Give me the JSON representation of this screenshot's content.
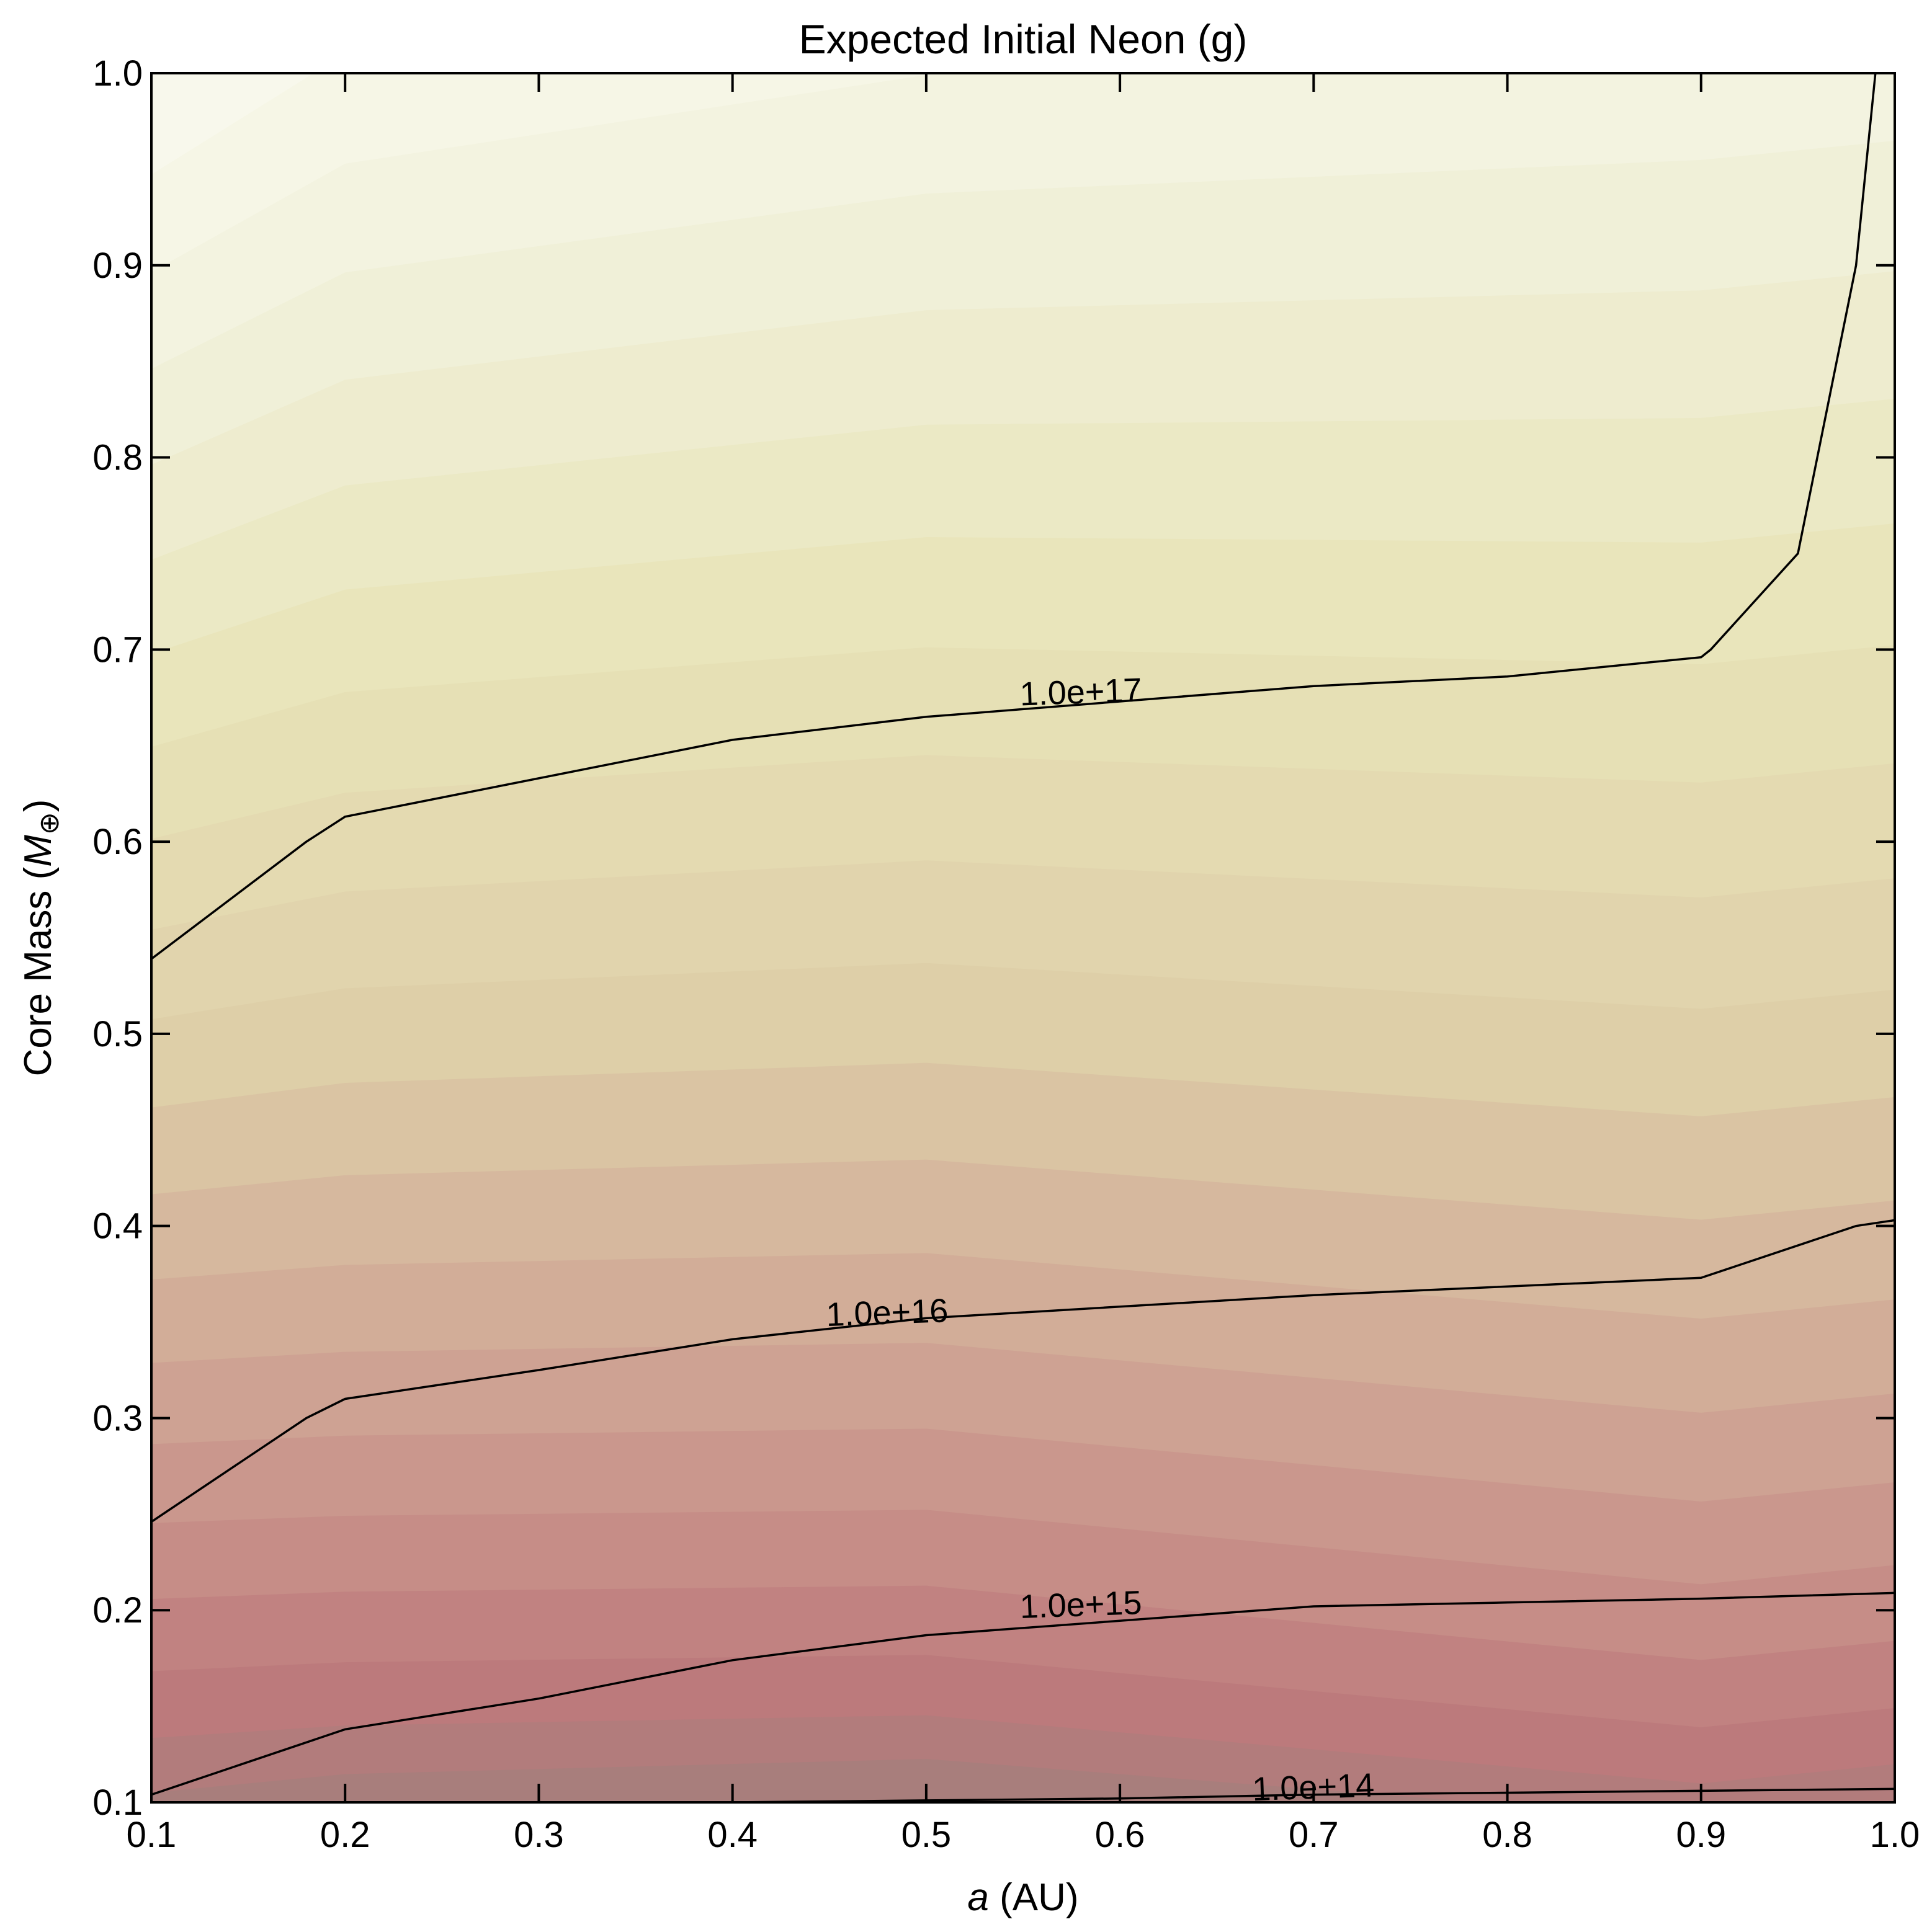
{
  "chart_data": {
    "type": "contour",
    "title": "Expected Initial Neon (g)",
    "xlabel_italic": "a",
    "xlabel_rest": " (AU)",
    "ylabel_main": "Core Mass (",
    "ylabel_symbol": "M",
    "ylabel_sub": "⊕",
    "ylabel_close": ")",
    "xlim": [
      0.1,
      1.0
    ],
    "ylim": [
      0.1,
      1.0
    ],
    "xticks": [
      0.1,
      0.2,
      0.3,
      0.4,
      0.5,
      0.6,
      0.7,
      0.8,
      0.9,
      1.0
    ],
    "xtick_labels": [
      "0.1",
      "0.2",
      "0.3",
      "0.4",
      "0.5",
      "0.6",
      "0.7",
      "0.8",
      "0.9",
      "1.0"
    ],
    "yticks": [
      0.1,
      0.2,
      0.3,
      0.4,
      0.5,
      0.6,
      0.7,
      0.8,
      0.9,
      1.0
    ],
    "ytick_labels": [
      "0.1",
      "0.2",
      "0.3",
      "0.4",
      "0.5",
      "0.6",
      "0.7",
      "0.8",
      "0.9",
      "1.0"
    ],
    "colormap": {
      "low": "#a87e7c",
      "mid_low": "#cc9a92",
      "mid": "#ddd0a8",
      "mid_high": "#e8e4b8",
      "high": "#fdfdf8"
    },
    "contours": [
      {
        "label": "1.0e+17",
        "label_at": [
          0.58,
          0.672
        ],
        "points": [
          [
            0.1,
            0.539
          ],
          [
            0.18,
            0.6
          ],
          [
            0.2,
            0.613
          ],
          [
            0.3,
            0.633
          ],
          [
            0.4,
            0.653
          ],
          [
            0.5,
            0.665
          ],
          [
            0.7,
            0.681
          ],
          [
            0.8,
            0.686
          ],
          [
            0.9,
            0.696
          ],
          [
            0.905,
            0.7
          ],
          [
            0.95,
            0.75
          ],
          [
            0.96,
            0.8
          ],
          [
            0.98,
            0.9
          ],
          [
            0.985,
            0.95
          ],
          [
            0.99,
            1.0
          ]
        ]
      },
      {
        "label": "1.0e+16",
        "label_at": [
          0.48,
          0.349
        ],
        "points": [
          [
            0.1,
            0.246
          ],
          [
            0.18,
            0.3
          ],
          [
            0.2,
            0.31
          ],
          [
            0.3,
            0.325
          ],
          [
            0.4,
            0.341
          ],
          [
            0.5,
            0.352
          ],
          [
            0.7,
            0.364
          ],
          [
            0.9,
            0.373
          ],
          [
            0.98,
            0.4
          ],
          [
            1.0,
            0.403
          ]
        ]
      },
      {
        "label": "1.0e+15",
        "label_at": [
          0.58,
          0.197
        ],
        "points": [
          [
            0.1,
            0.104
          ],
          [
            0.2,
            0.138
          ],
          [
            0.3,
            0.154
          ],
          [
            0.4,
            0.174
          ],
          [
            0.5,
            0.187
          ],
          [
            0.7,
            0.202
          ],
          [
            0.8,
            0.204
          ],
          [
            0.9,
            0.206
          ],
          [
            1.0,
            0.209
          ]
        ]
      },
      {
        "label": "1.0e+14",
        "label_at": [
          0.7,
          0.102
        ],
        "points": [
          [
            0.4,
            0.1
          ],
          [
            0.5,
            0.101
          ],
          [
            0.6,
            0.102
          ],
          [
            0.7,
            0.104
          ],
          [
            0.8,
            0.105
          ],
          [
            0.9,
            0.106
          ],
          [
            1.0,
            0.107
          ]
        ]
      }
    ],
    "fill_levels_left": [
      0.105,
      0.125,
      0.145,
      0.175,
      0.21,
      0.246,
      0.3,
      0.345,
      0.405,
      0.465,
      0.53,
      0.625,
      0.72,
      0.83,
      0.96
    ],
    "fill_levels_right": [
      0.101,
      0.105,
      0.112,
      0.125,
      0.14,
      0.16,
      0.182,
      0.209,
      0.26,
      0.31,
      0.36,
      0.403,
      0.46,
      0.545,
      0.64,
      0.76,
      0.9,
      1.0
    ]
  }
}
